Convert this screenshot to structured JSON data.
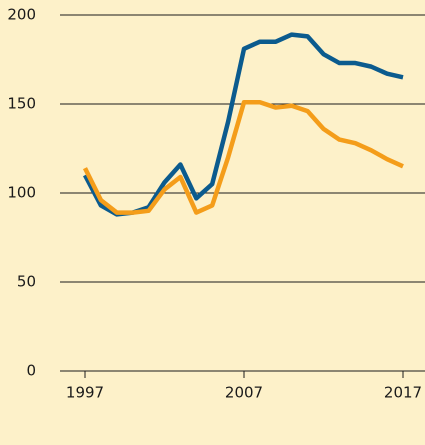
{
  "chart_data": {
    "type": "line",
    "x": [
      1997,
      1998,
      1999,
      2000,
      2001,
      2002,
      2003,
      2004,
      2005,
      2006,
      2007,
      2008,
      2009,
      2010,
      2011,
      2012,
      2013,
      2014,
      2015,
      2016,
      2017
    ],
    "series": [
      {
        "color": "#0b5b8e",
        "values": [
          110,
          93,
          88,
          89,
          92,
          106,
          116,
          97,
          105,
          140,
          181,
          185,
          185,
          189,
          188,
          178,
          173,
          173,
          171,
          167,
          165
        ]
      },
      {
        "color": "#f49d1a",
        "values": [
          114,
          96,
          89,
          89,
          90,
          102,
          109,
          89,
          93,
          120,
          151,
          151,
          148,
          149,
          146,
          136,
          130,
          128,
          124,
          119,
          115
        ]
      }
    ],
    "xlim": [
      1997,
      2017
    ],
    "xticks": [
      1997,
      2007,
      2017
    ],
    "ylim": [
      0,
      200
    ],
    "yticks": [
      0,
      50,
      100,
      150,
      200
    ],
    "grid": true
  }
}
